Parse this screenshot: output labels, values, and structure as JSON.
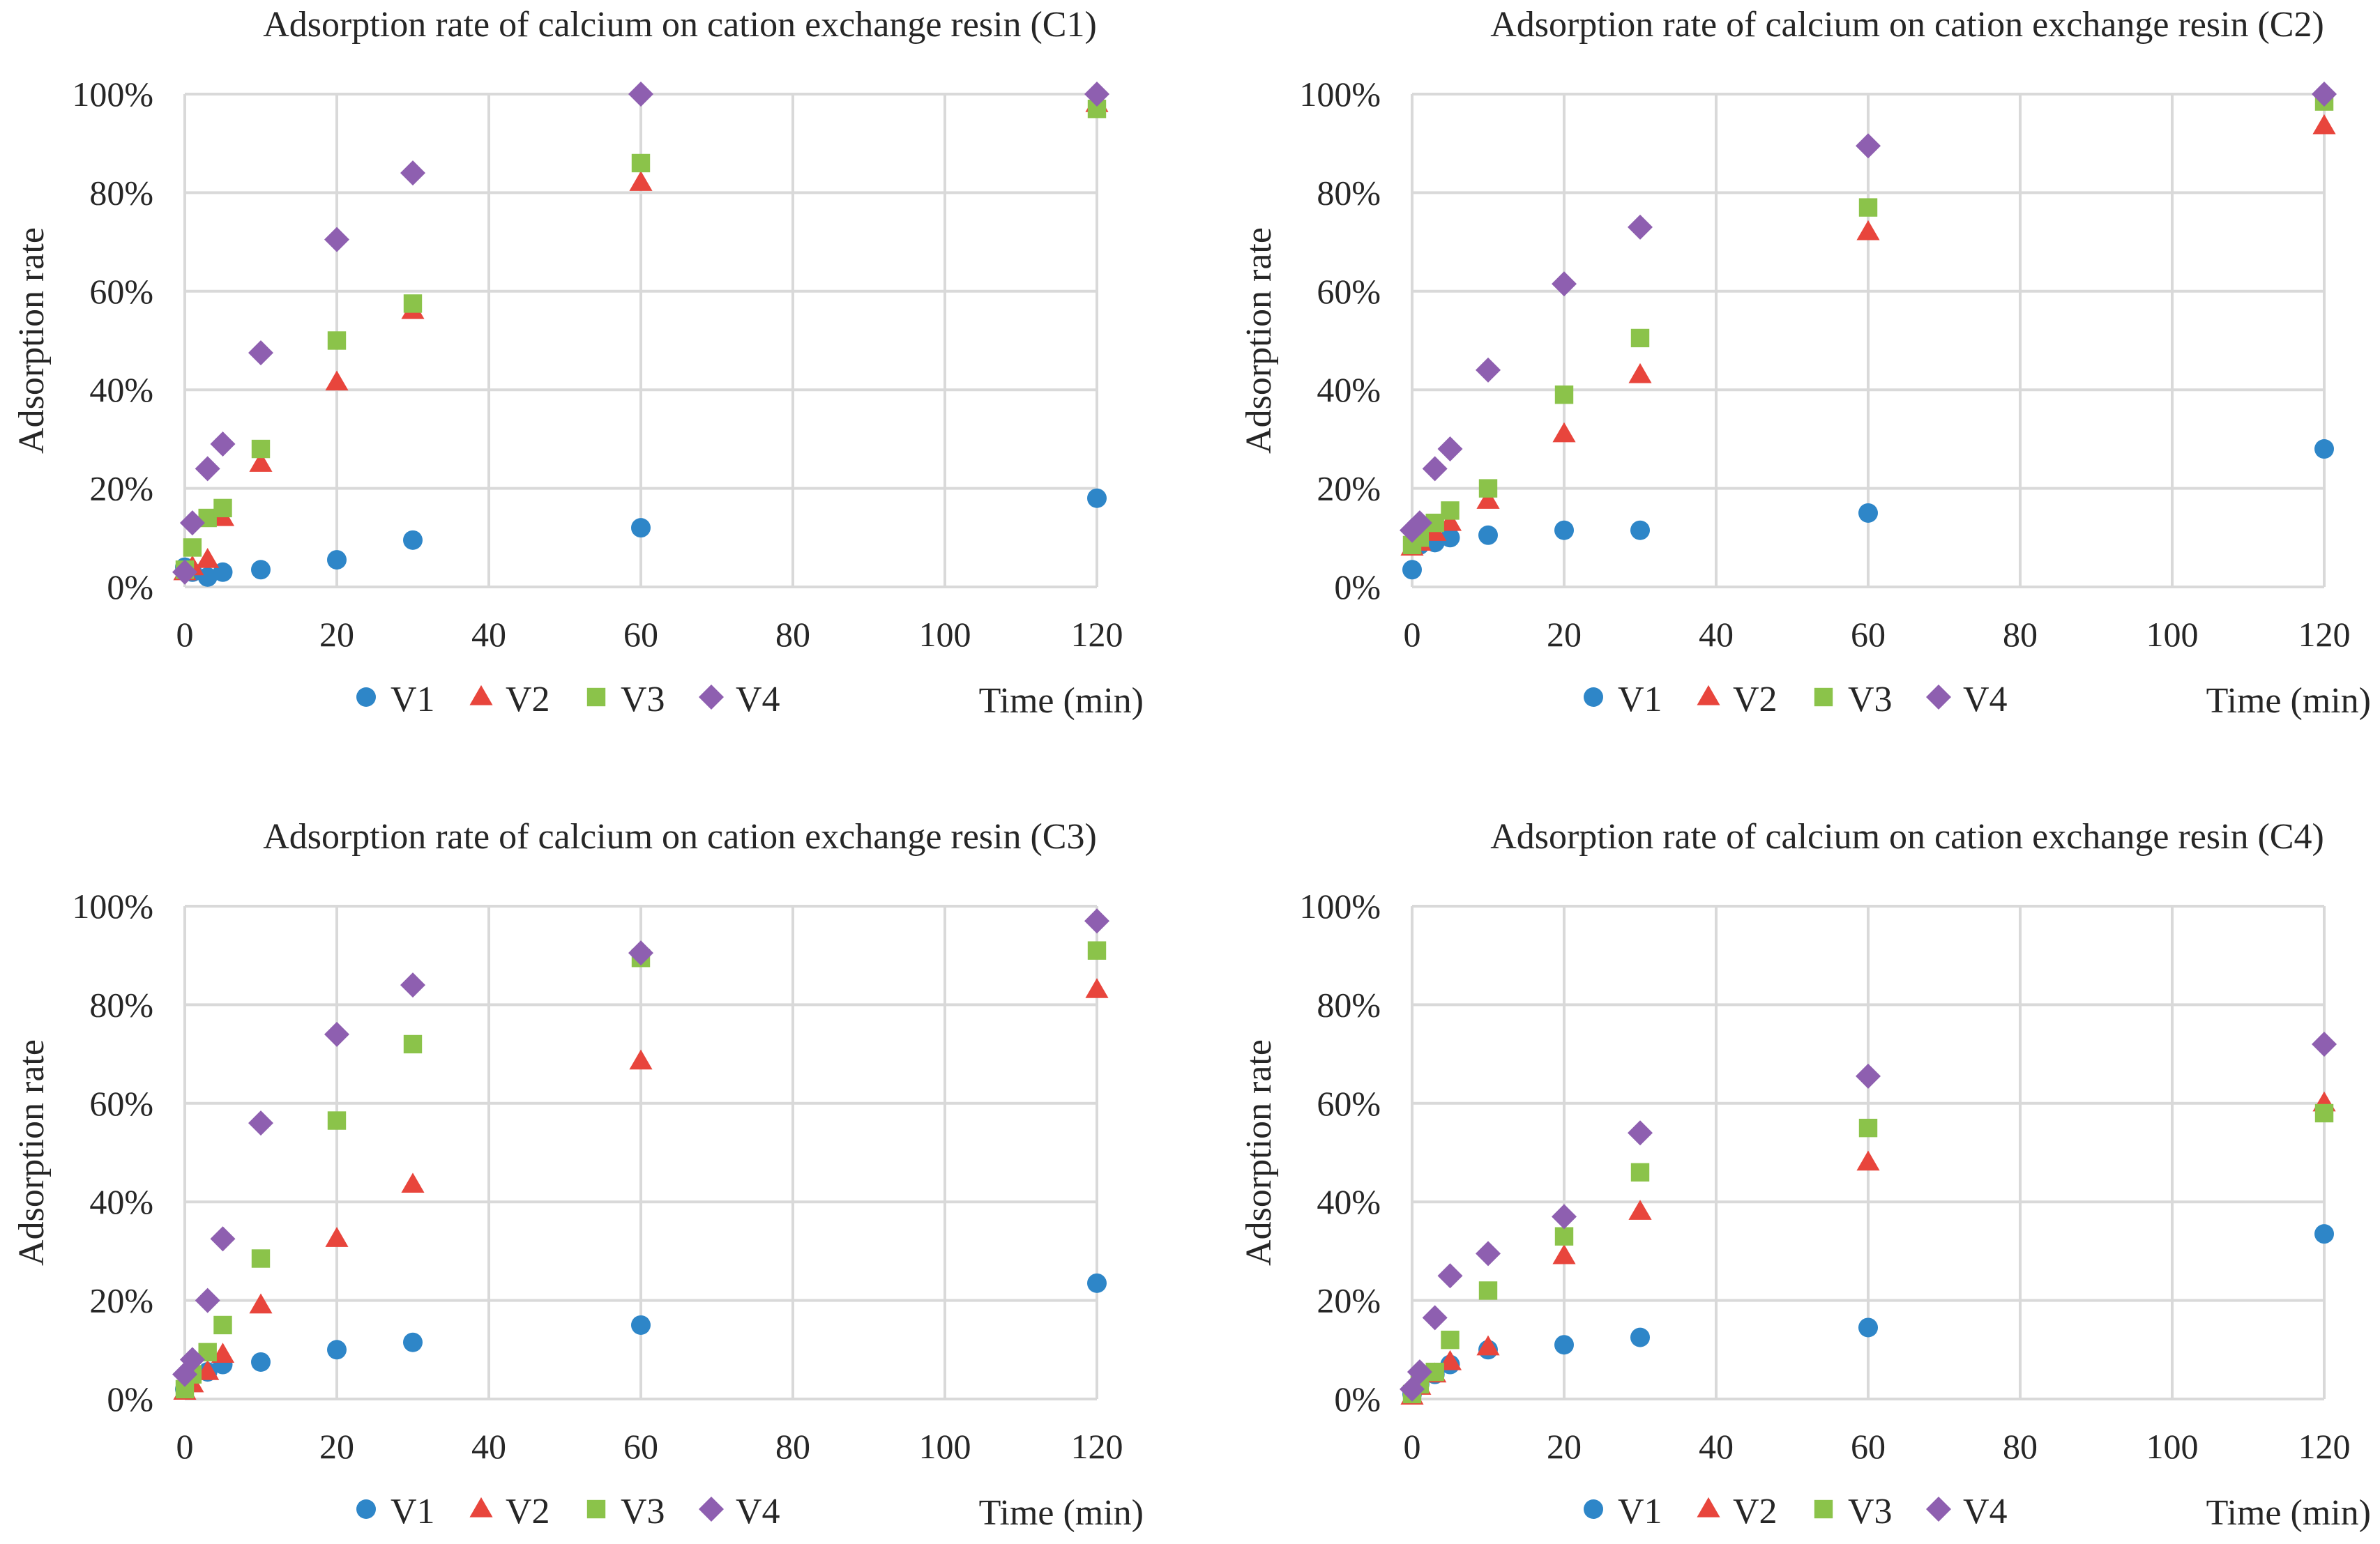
{
  "colors": {
    "V1": "#2e86c8",
    "V2": "#e8453c",
    "V3": "#8bc34a",
    "V4": "#8e5fb0",
    "grid": "#d9d9d9",
    "text": "#262626"
  },
  "legend_labels": [
    "V1",
    "V2",
    "V3",
    "V4"
  ],
  "chart_data": [
    {
      "type": "scatter",
      "title": "Adsorption rate of calcium on cation exchange resin (C1)",
      "xlabel": "Time (min)",
      "ylabel": "Adsorption rate",
      "xlim": [
        0,
        120
      ],
      "ylim": [
        0,
        100
      ],
      "xticks": [
        "0",
        "20",
        "40",
        "60",
        "80",
        "100",
        "120"
      ],
      "yticks": [
        "0%",
        "20%",
        "40%",
        "60%",
        "80%",
        "100%"
      ],
      "grid": true,
      "legend_position": "bottom",
      "x": [
        0,
        1,
        3,
        5,
        10,
        20,
        30,
        60,
        120
      ],
      "series": [
        {
          "name": "V1",
          "marker": "circle",
          "values": [
            4,
            3,
            2,
            3,
            3.5,
            5.5,
            9.5,
            12,
            18
          ]
        },
        {
          "name": "V2",
          "marker": "triangle",
          "values": [
            3,
            4,
            5.5,
            14,
            25,
            41.5,
            56,
            82,
            98
          ]
        },
        {
          "name": "V3",
          "marker": "square",
          "values": [
            3.5,
            8,
            14,
            16,
            28,
            50,
            57.5,
            86,
            97
          ]
        },
        {
          "name": "V4",
          "marker": "diamond",
          "values": [
            3,
            13,
            24,
            29,
            47.5,
            70.5,
            84,
            100,
            100
          ]
        }
      ]
    },
    {
      "type": "scatter",
      "title": "Adsorption rate of calcium on cation exchange resin (C2)",
      "xlabel": "Time (min)",
      "ylabel": "Adsorption rate",
      "xlim": [
        0,
        120
      ],
      "ylim": [
        0,
        100
      ],
      "xticks": [
        "0",
        "20",
        "40",
        "60",
        "80",
        "100",
        "120"
      ],
      "yticks": [
        "0%",
        "20%",
        "40%",
        "60%",
        "80%",
        "100%"
      ],
      "grid": true,
      "legend_position": "bottom",
      "x": [
        0,
        1,
        3,
        5,
        10,
        20,
        30,
        60,
        120
      ],
      "series": [
        {
          "name": "V1",
          "marker": "circle",
          "values": [
            3.5,
            8.5,
            9,
            10,
            10.5,
            11.5,
            11.5,
            15,
            28
          ]
        },
        {
          "name": "V2",
          "marker": "triangle",
          "values": [
            8,
            9,
            11,
            13,
            17.5,
            31,
            43,
            72,
            93.5
          ]
        },
        {
          "name": "V3",
          "marker": "square",
          "values": [
            8.5,
            10,
            13,
            15.5,
            20,
            39,
            50.5,
            77,
            98.5
          ]
        },
        {
          "name": "V4",
          "marker": "diamond",
          "values": [
            11.5,
            13,
            24,
            28,
            44,
            61.5,
            73,
            89.5,
            100
          ]
        }
      ]
    },
    {
      "type": "scatter",
      "title": "Adsorption rate of calcium on cation exchange resin (C3)",
      "xlabel": "Time (min)",
      "ylabel": "Adsorption rate",
      "xlim": [
        0,
        120
      ],
      "ylim": [
        0,
        100
      ],
      "xticks": [
        "0",
        "20",
        "40",
        "60",
        "80",
        "100",
        "120"
      ],
      "yticks": [
        "0%",
        "20%",
        "40%",
        "60%",
        "80%",
        "100%"
      ],
      "grid": true,
      "legend_position": "bottom",
      "x": [
        0,
        1,
        3,
        5,
        10,
        20,
        30,
        60,
        120
      ],
      "series": [
        {
          "name": "V1",
          "marker": "circle",
          "values": [
            2,
            5,
            5.5,
            7,
            7.5,
            10,
            11.5,
            15,
            23.5
          ]
        },
        {
          "name": "V2",
          "marker": "triangle",
          "values": [
            1.5,
            3,
            5.5,
            9,
            19,
            32.5,
            43.5,
            68.5,
            83
          ]
        },
        {
          "name": "V3",
          "marker": "square",
          "values": [
            2,
            5,
            9.5,
            15,
            28.5,
            56.5,
            72,
            89.5,
            91
          ]
        },
        {
          "name": "V4",
          "marker": "diamond",
          "values": [
            5,
            8,
            20,
            32.5,
            56,
            74,
            84,
            90.5,
            97
          ]
        }
      ]
    },
    {
      "type": "scatter",
      "title": "Adsorption rate of calcium on cation exchange resin (C4)",
      "xlabel": "Time (min)",
      "ylabel": "Adsorption rate",
      "xlim": [
        0,
        120
      ],
      "ylim": [
        0,
        100
      ],
      "xticks": [
        "0",
        "20",
        "40",
        "60",
        "80",
        "100",
        "120"
      ],
      "yticks": [
        "0%",
        "20%",
        "40%",
        "60%",
        "80%",
        "100%"
      ],
      "grid": true,
      "legend_position": "bottom",
      "x": [
        0,
        1,
        3,
        5,
        10,
        20,
        30,
        60,
        120
      ],
      "series": [
        {
          "name": "V1",
          "marker": "circle",
          "values": [
            1,
            3,
            5,
            7,
            10,
            11,
            12.5,
            14.5,
            33.5
          ]
        },
        {
          "name": "V2",
          "marker": "triangle",
          "values": [
            0.5,
            2.5,
            5,
            7.5,
            10.5,
            29,
            38,
            48,
            60
          ]
        },
        {
          "name": "V3",
          "marker": "square",
          "values": [
            1,
            3,
            5.5,
            12,
            22,
            33,
            46,
            55,
            58
          ]
        },
        {
          "name": "V4",
          "marker": "diamond",
          "values": [
            2,
            5.5,
            16.5,
            25,
            29.5,
            37,
            54,
            65.5,
            72
          ]
        }
      ]
    }
  ]
}
